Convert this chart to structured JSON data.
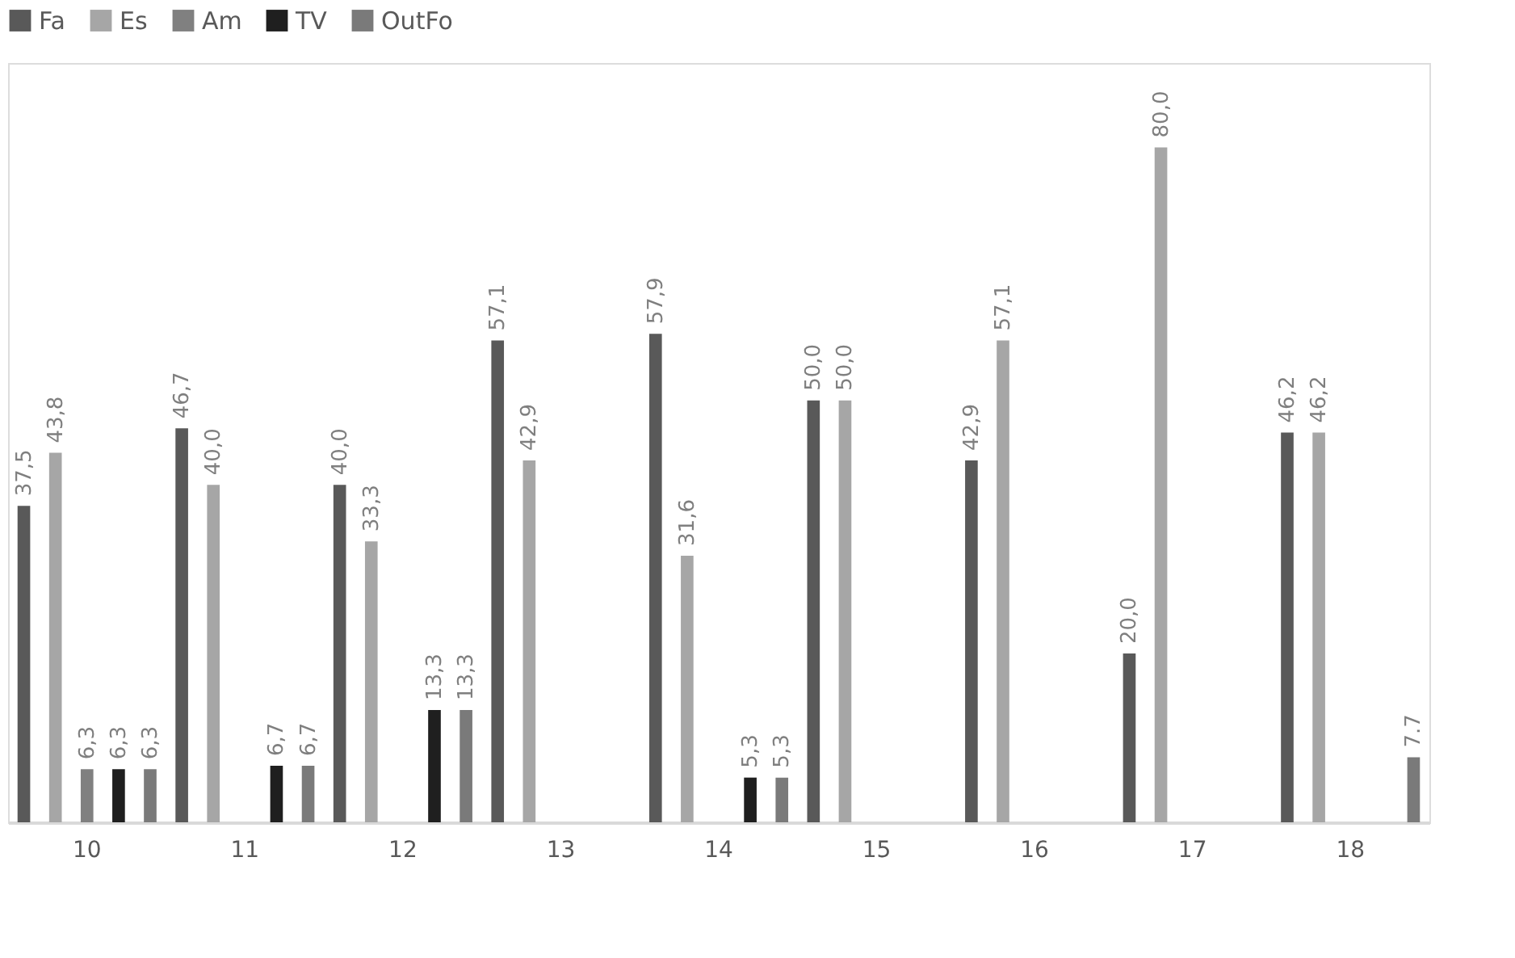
{
  "chart_data": {
    "type": "bar",
    "categories": [
      "10",
      "11",
      "12",
      "13",
      "14",
      "15",
      "16",
      "17",
      "18"
    ],
    "series": [
      {
        "name": "Fa",
        "color": "#595959",
        "values": [
          37.5,
          46.7,
          40.0,
          57.1,
          57.9,
          50.0,
          42.9,
          20.0,
          46.2
        ],
        "value_labels": [
          "37,5",
          "46,7",
          "40,0",
          "57,1",
          "57,9",
          "50,0",
          "42,9",
          "20,0",
          "46,2"
        ]
      },
      {
        "name": "Es",
        "color": "#a6a6a6",
        "values": [
          43.8,
          40.0,
          33.3,
          42.9,
          31.6,
          50.0,
          57.1,
          80.0,
          46.2
        ],
        "value_labels": [
          "43,8",
          "40,0",
          "33,3",
          "42,9",
          "31,6",
          "50,0",
          "57,1",
          "80,0",
          "46,2"
        ]
      },
      {
        "name": "Am",
        "color": "#808080",
        "values": [
          6.3,
          null,
          null,
          null,
          null,
          null,
          null,
          null,
          null
        ],
        "value_labels": [
          "6,3",
          null,
          null,
          null,
          null,
          null,
          null,
          null,
          null
        ]
      },
      {
        "name": "TV",
        "color": "#1f1f1f",
        "values": [
          6.3,
          6.7,
          13.3,
          null,
          5.3,
          null,
          null,
          null,
          null
        ],
        "value_labels": [
          "6,3",
          "6,7",
          "13,3",
          null,
          "5,3",
          null,
          null,
          null,
          null
        ]
      },
      {
        "name": "OutFo",
        "color": "#7a7a7a",
        "values": [
          6.3,
          6.7,
          13.3,
          null,
          5.3,
          null,
          null,
          null,
          7.7
        ],
        "value_labels": [
          "6,3",
          "6,7",
          "13,3",
          null,
          "5,3",
          null,
          null,
          null,
          "7.7"
        ]
      }
    ],
    "ylim": [
      0,
      90
    ],
    "grid": false,
    "legend": "top",
    "tick_labels": "x"
  }
}
